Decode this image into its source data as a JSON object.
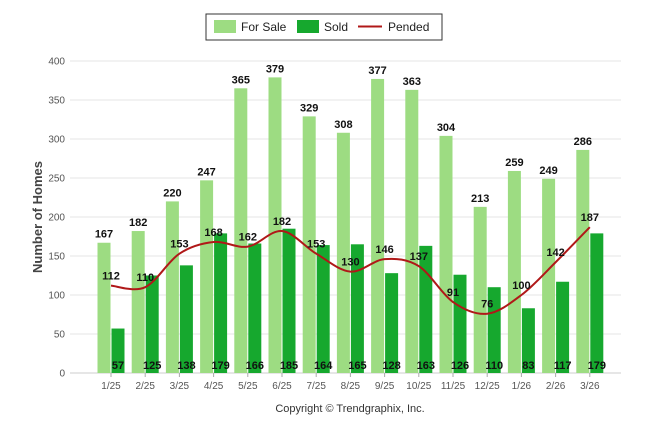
{
  "chart_data": {
    "type": "bar",
    "ylabel": "Number of Homes",
    "xlabel": "",
    "ylim": [
      0,
      400
    ],
    "yticks": [
      0,
      50,
      100,
      150,
      200,
      250,
      300,
      350,
      400
    ],
    "grid": true,
    "legend_position": "top-center",
    "categories": [
      "1/25",
      "2/25",
      "3/25",
      "4/25",
      "5/25",
      "6/25",
      "7/25",
      "8/25",
      "9/25",
      "10/25",
      "11/25",
      "12/25",
      "1/26",
      "2/26",
      "3/26"
    ],
    "series": [
      {
        "name": "For Sale",
        "kind": "bar",
        "color": "#9ddc82",
        "values": [
          167,
          182,
          220,
          247,
          365,
          379,
          329,
          308,
          377,
          363,
          304,
          213,
          259,
          249,
          286
        ]
      },
      {
        "name": "Sold",
        "kind": "bar",
        "color": "#16a82e",
        "values": [
          57,
          125,
          138,
          179,
          166,
          185,
          164,
          165,
          128,
          163,
          126,
          110,
          83,
          117,
          179
        ]
      },
      {
        "name": "Pended",
        "kind": "line",
        "color": "#b01818",
        "values": [
          112,
          110,
          153,
          168,
          162,
          182,
          153,
          130,
          146,
          137,
          91,
          76,
          100,
          142,
          187
        ]
      }
    ],
    "credit": "Copyright © Trendgraphix, Inc."
  }
}
